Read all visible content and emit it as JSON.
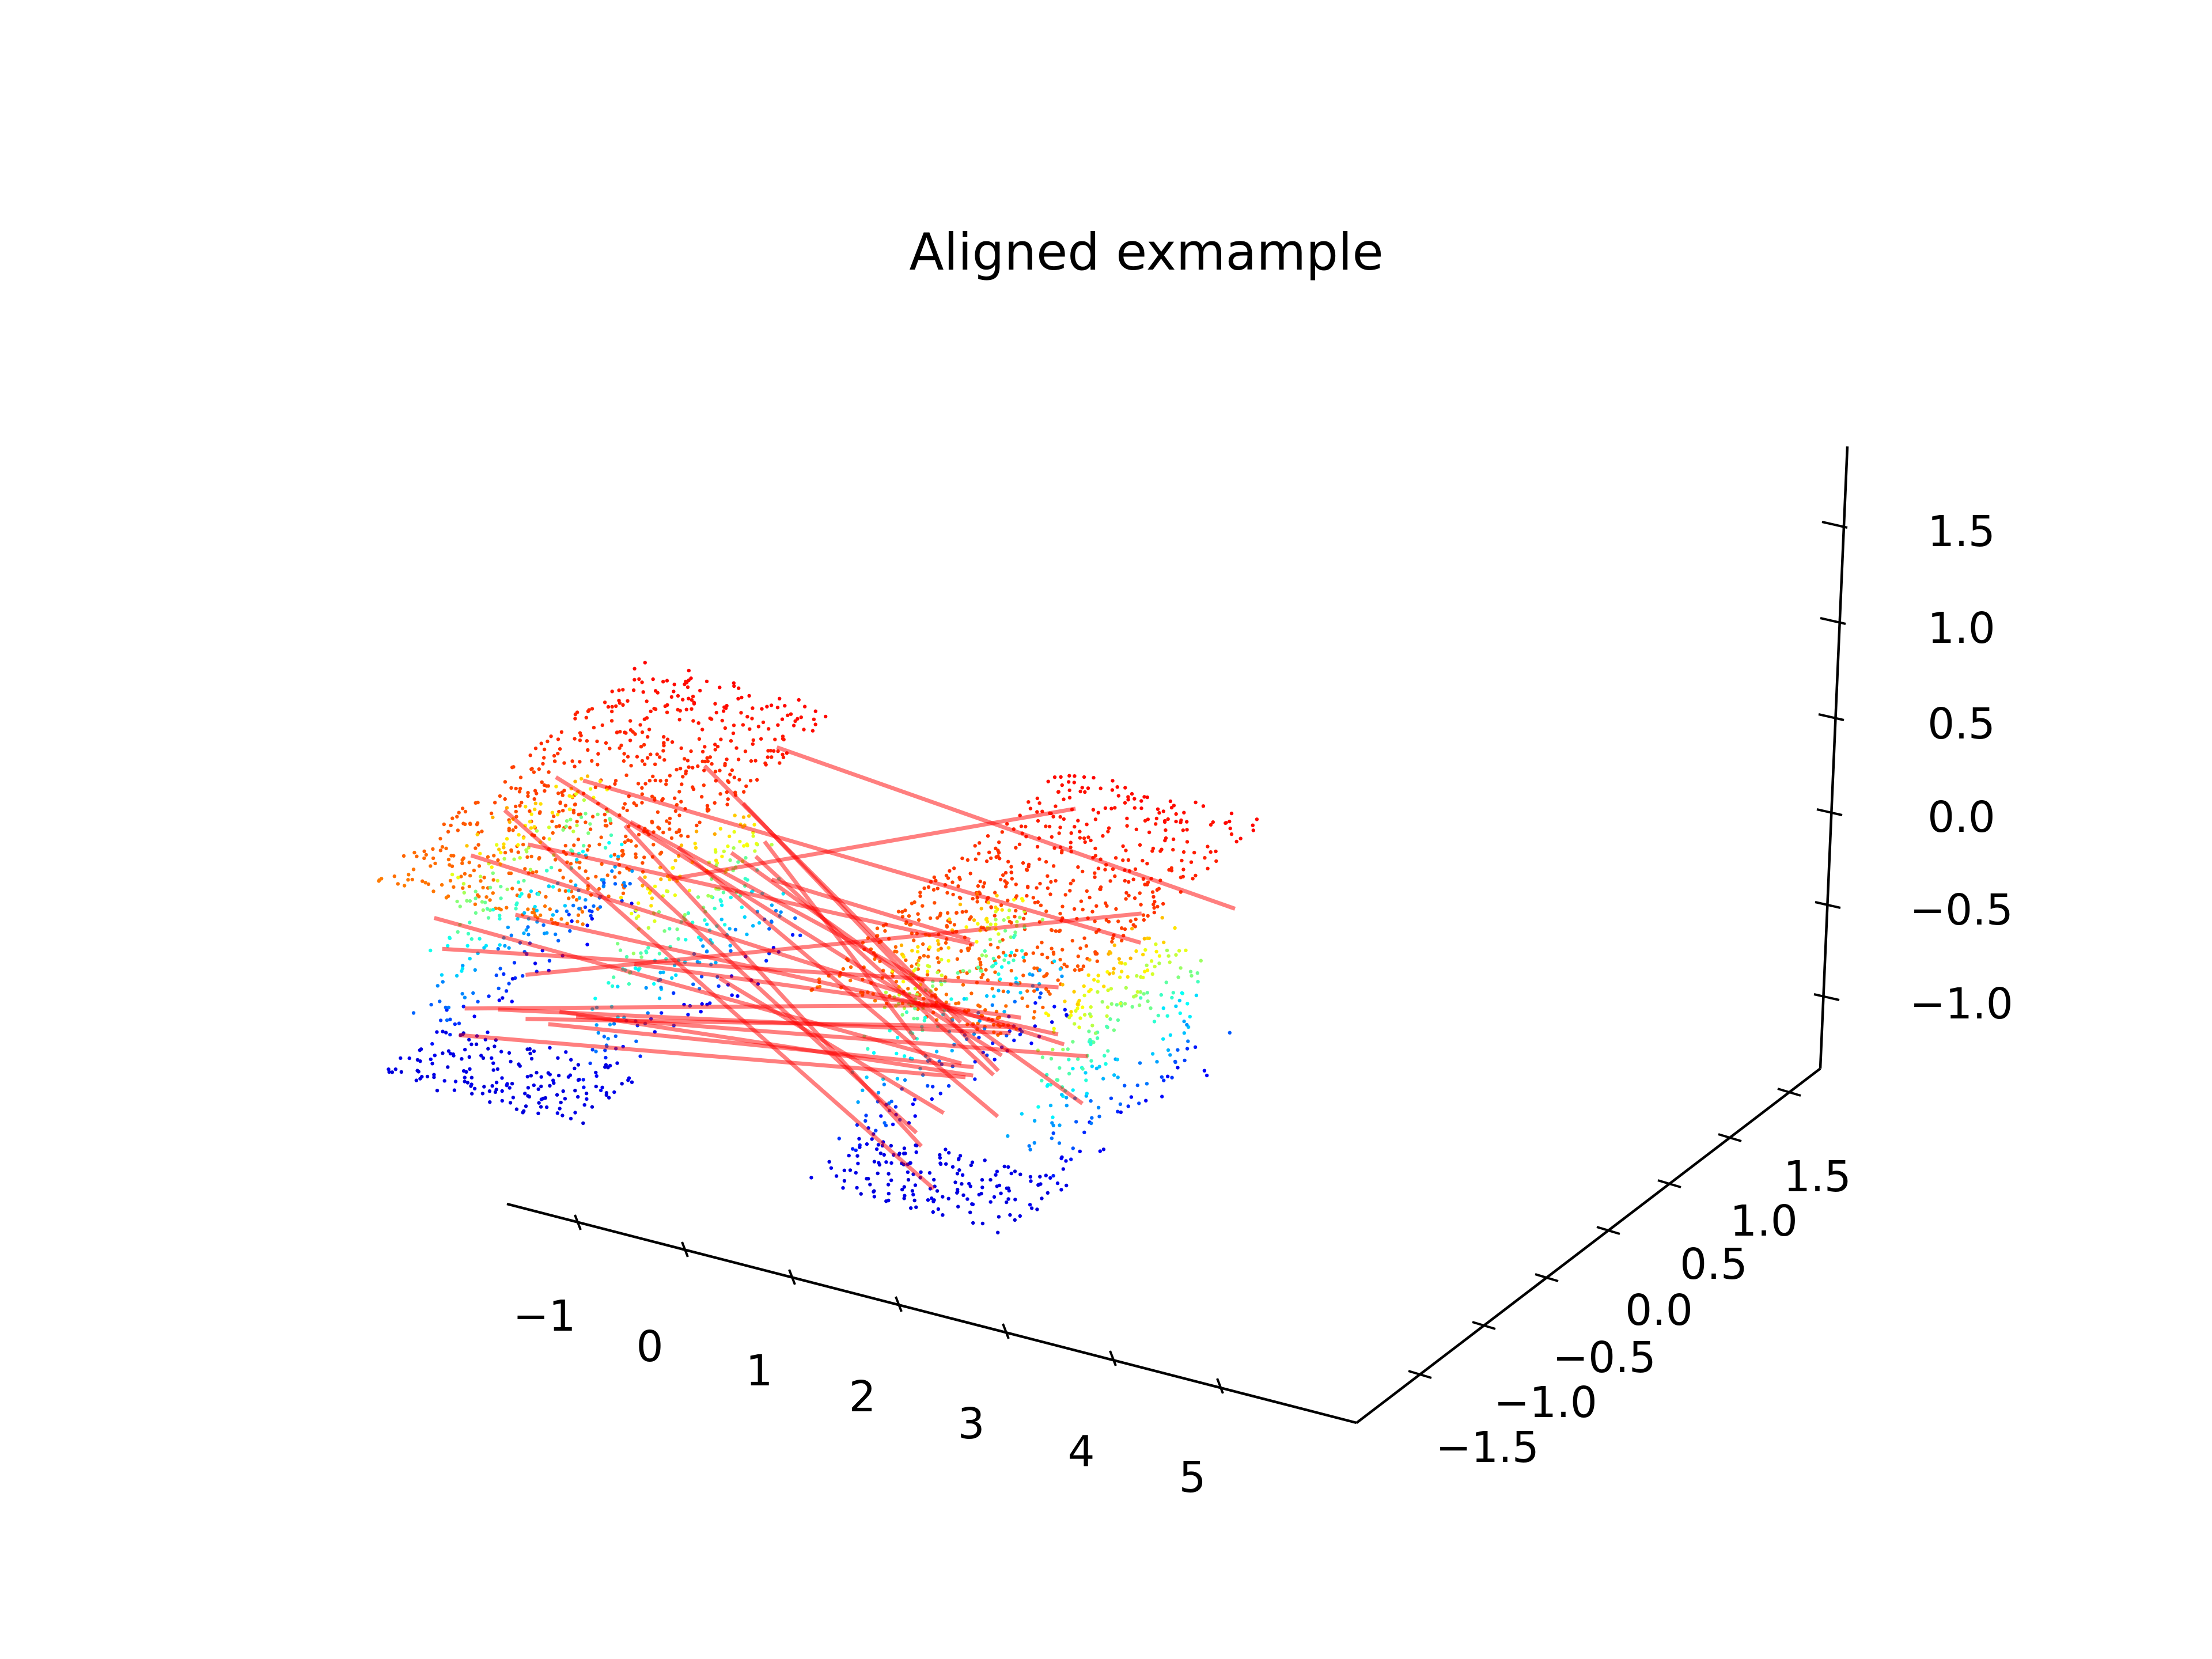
{
  "chart_data": {
    "type": "scatter",
    "projection": "3d",
    "title": "Aligned exmample",
    "xlabel": "",
    "ylabel": "",
    "zlabel": "",
    "xlim": [
      -1.5,
      5.7
    ],
    "ylim": [
      -1.7,
      1.7
    ],
    "zlim": [
      -1.3,
      1.8
    ],
    "x_ticks": [
      "−1",
      "0",
      "1",
      "2",
      "3",
      "4",
      "5"
    ],
    "y_ticks": [
      "−1.5",
      "−1.0",
      "−0.5",
      "0.0",
      "0.5",
      "1.0",
      "1.5"
    ],
    "z_ticks": [
      "−1.0",
      "−0.5",
      "0.0",
      "0.5",
      "1.0",
      "1.5"
    ],
    "grid": false,
    "colormap": "jet",
    "colors": {
      "axis": "#000000",
      "correspondence_line": "#ff0000"
    },
    "line_alpha": 0.5,
    "series": [
      {
        "kind": "point-cloud",
        "x_range": [
          -1.0,
          1.0
        ],
        "y_range": [
          -1.0,
          1.0
        ],
        "z_range": [
          -1.0,
          1.4
        ]
      },
      {
        "kind": "point-cloud",
        "x_range": [
          3.0,
          5.0
        ],
        "y_range": [
          -1.0,
          1.0
        ],
        "z_range": [
          -1.0,
          1.4
        ]
      },
      {
        "kind": "correspondence-lines",
        "count": 30
      }
    ]
  }
}
